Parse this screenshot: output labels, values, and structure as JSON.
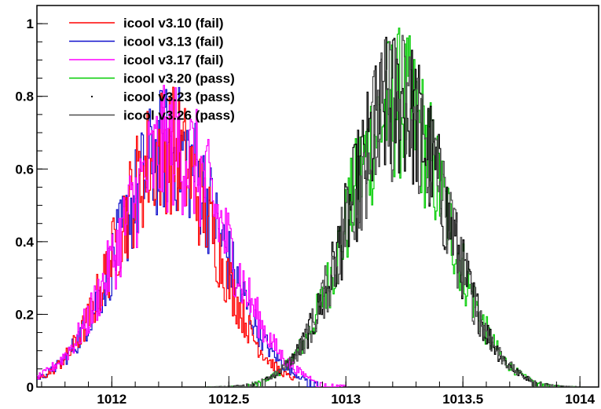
{
  "chart_data": {
    "type": "line",
    "title": "",
    "xlabel": "",
    "ylabel": "",
    "xlim": [
      1011.68,
      1014.08
    ],
    "ylim": [
      0,
      1.05
    ],
    "xticks": [
      {
        "value": 1012,
        "label": "1012"
      },
      {
        "value": 1012.5,
        "label": "1012.5"
      },
      {
        "value": 1013,
        "label": "1013"
      },
      {
        "value": 1013.5,
        "label": "1013.5"
      },
      {
        "value": 1014,
        "label": "1014"
      }
    ],
    "yticks": [
      {
        "value": 0,
        "label": "0"
      },
      {
        "value": 0.2,
        "label": "0.2"
      },
      {
        "value": 0.4,
        "label": "0.4"
      },
      {
        "value": 0.6,
        "label": "0.6"
      },
      {
        "value": 0.8,
        "label": "0.8"
      },
      {
        "value": 1,
        "label": "1"
      }
    ],
    "grid": false,
    "legend_position": "top-left",
    "series": [
      {
        "name": "icool v3.10 (fail)",
        "color": "#ff0000",
        "center": 1012.23,
        "sigma": 0.21,
        "peak": 0.66,
        "x_range": [
          1011.68,
          1012.78
        ],
        "x": [
          1011.7,
          1011.8,
          1011.9,
          1012.0,
          1012.1,
          1012.2,
          1012.3,
          1012.4,
          1012.5,
          1012.6,
          1012.7,
          1012.75
        ],
        "values": [
          0.05,
          0.12,
          0.24,
          0.4,
          0.56,
          0.65,
          0.66,
          0.56,
          0.4,
          0.24,
          0.09,
          0.03
        ]
      },
      {
        "name": "icool v3.13 (fail)",
        "color": "#1010cc",
        "center": 1012.25,
        "sigma": 0.22,
        "peak": 0.66,
        "x_range": [
          1011.68,
          1012.88
        ],
        "x": [
          1011.7,
          1011.8,
          1011.9,
          1012.0,
          1012.1,
          1012.2,
          1012.3,
          1012.4,
          1012.5,
          1012.6,
          1012.7,
          1012.8
        ],
        "values": [
          0.07,
          0.14,
          0.27,
          0.43,
          0.58,
          0.66,
          0.65,
          0.55,
          0.41,
          0.26,
          0.12,
          0.03
        ]
      },
      {
        "name": "icool v3.17 (fail)",
        "color": "#ff00ff",
        "center": 1012.26,
        "sigma": 0.23,
        "peak": 0.66,
        "x_range": [
          1011.68,
          1013.0
        ],
        "x": [
          1011.7,
          1011.8,
          1011.9,
          1012.0,
          1012.1,
          1012.2,
          1012.3,
          1012.4,
          1012.5,
          1012.6,
          1012.7,
          1012.8,
          1012.9
        ],
        "values": [
          0.09,
          0.16,
          0.29,
          0.45,
          0.59,
          0.66,
          0.65,
          0.56,
          0.43,
          0.29,
          0.15,
          0.05,
          0.01
        ]
      },
      {
        "name": "icool v3.20 (pass)",
        "color": "#00cc00",
        "center": 1013.22,
        "sigma": 0.21,
        "peak": 0.78,
        "x_range": [
          1012.4,
          1014.0
        ],
        "x": [
          1012.6,
          1012.8,
          1013.0,
          1013.2,
          1013.4,
          1013.6,
          1013.8
        ],
        "values": [
          0.05,
          0.22,
          0.58,
          0.78,
          0.5,
          0.18,
          0.02
        ]
      },
      {
        "name": "icool v3.23 (pass)",
        "color": "#000000",
        "center": 1013.22,
        "sigma": 0.21,
        "peak": 0.78,
        "x_range": [
          1012.4,
          1014.0
        ],
        "x": [
          1012.6,
          1012.8,
          1013.0,
          1013.2,
          1013.4,
          1013.6,
          1013.8
        ],
        "values": [
          0.05,
          0.22,
          0.58,
          0.78,
          0.5,
          0.18,
          0.02
        ]
      },
      {
        "name": "icool v3.26 (pass)",
        "color": "#4d4d4d",
        "center": 1013.22,
        "sigma": 0.21,
        "peak": 0.78,
        "x_range": [
          1012.4,
          1014.0
        ],
        "x": [
          1012.6,
          1012.8,
          1013.0,
          1013.2,
          1013.4,
          1013.6,
          1013.8
        ],
        "values": [
          0.05,
          0.22,
          0.58,
          0.78,
          0.5,
          0.18,
          0.02
        ]
      }
    ]
  }
}
